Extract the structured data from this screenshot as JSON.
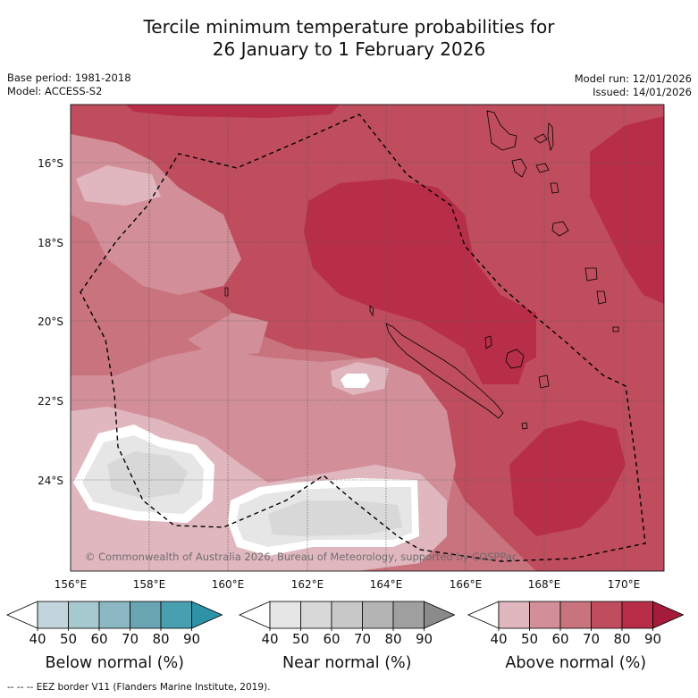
{
  "title": {
    "line1": "Tercile minimum temperature probabilities for",
    "line2": "26 January to 1 February 2026"
  },
  "meta": {
    "base_period": "Base period: 1981-2018",
    "model": "Model: ACCESS-S2",
    "model_run": "Model run: 12/01/2026",
    "issued": "Issued: 14/01/2026"
  },
  "map": {
    "lat_labels": [
      "16°S",
      "18°S",
      "20°S",
      "22°S",
      "24°S"
    ],
    "lon_labels": [
      "156°E",
      "158°E",
      "160°E",
      "162°E",
      "164°E",
      "166°E",
      "168°E",
      "170°E"
    ],
    "copyright": "© Commonwealth of Australia 2026, Bureau of Meteorology, supported by COSPPac",
    "eez_border_style": "dashed black",
    "islands": [
      "New Caledonia",
      "Loyalty Islands",
      "Vanuatu"
    ]
  },
  "legend": {
    "ticks": [
      "40",
      "50",
      "60",
      "70",
      "80",
      "90"
    ],
    "bars": [
      {
        "label": "Below normal (%)",
        "colors": [
          "#c3d5dc",
          "#a6c8cf",
          "#8bb8c2",
          "#68a4b2",
          "#479fb0"
        ],
        "overflow_color": "#2f93a8"
      },
      {
        "label": "Near normal (%)",
        "colors": [
          "#e6e6e6",
          "#d8d8d8",
          "#c8c8c8",
          "#b4b4b4",
          "#9f9f9f"
        ],
        "overflow_color": "#8a8a8a"
      },
      {
        "label": "Above normal (%)",
        "colors": [
          "#e0b7bf",
          "#d28f99",
          "#c8737e",
          "#bf4d5e",
          "#b82e48"
        ],
        "overflow_color": "#a51c3a"
      }
    ]
  },
  "footnote": "--  --  -- EEZ border V11 (Flanders Marine Institute, 2019)."
}
